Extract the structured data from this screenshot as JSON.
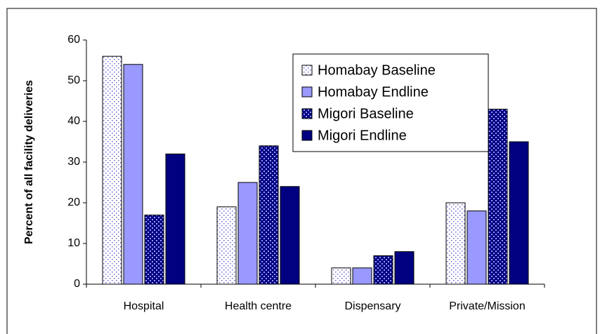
{
  "chart_data": {
    "type": "bar",
    "y_label": "Percent of all facility deliveries",
    "categories": [
      "Hospital",
      "Health centre",
      "Dispensary",
      "Private/Mission"
    ],
    "series": [
      {
        "name": "Homabay Baseline",
        "color": "#6666cc",
        "pattern": "dotted",
        "values": [
          56,
          19,
          4,
          20
        ]
      },
      {
        "name": "Homabay Endline",
        "color": "#9999ff",
        "values": [
          54,
          25,
          4,
          18
        ]
      },
      {
        "name": "Migori Baseline",
        "color": "#000080",
        "pattern": "checker",
        "values": [
          17,
          34,
          7,
          43
        ]
      },
      {
        "name": "Migori Endline",
        "color": "#000080",
        "values": [
          32,
          24,
          8,
          35
        ]
      }
    ],
    "ylim": [
      0,
      60
    ],
    "yticks": [
      0,
      10,
      20,
      30,
      40,
      50,
      60
    ],
    "legend": "upper-center"
  }
}
